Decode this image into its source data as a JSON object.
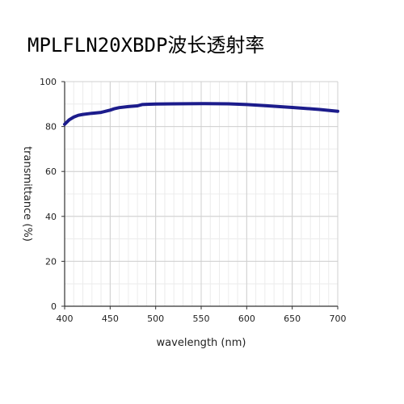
{
  "title": "MPLFLN20XBDP波长透射率",
  "chart_data": {
    "type": "line",
    "title": "MPLFLN20XBDP波长透射率",
    "xlabel": "wavelength (nm)",
    "ylabel": "transmittance (%)",
    "xlim": [
      400,
      700
    ],
    "ylim": [
      0,
      100
    ],
    "xticks": [
      400,
      450,
      500,
      550,
      600,
      650,
      700
    ],
    "yticks": [
      0,
      20,
      40,
      60,
      80,
      100
    ],
    "grid": true,
    "series": [
      {
        "color": "#1c1c8c",
        "x": [
          400,
          405,
          410,
          415,
          420,
          430,
          440,
          445,
          450,
          455,
          460,
          470,
          480,
          485,
          490,
          500,
          520,
          550,
          580,
          600,
          620,
          650,
          680,
          700
        ],
        "y": [
          81.0,
          83.0,
          84.2,
          85.0,
          85.4,
          85.9,
          86.3,
          86.8,
          87.3,
          88.0,
          88.4,
          88.9,
          89.2,
          89.8,
          89.9,
          90.0,
          90.1,
          90.2,
          90.1,
          89.8,
          89.3,
          88.5,
          87.6,
          86.8
        ]
      }
    ]
  }
}
